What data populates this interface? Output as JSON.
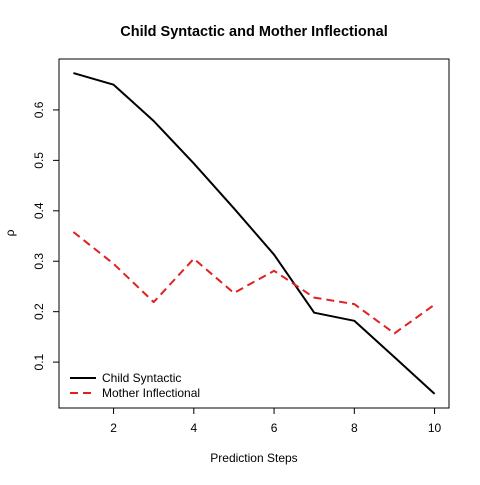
{
  "chart_data": {
    "type": "line",
    "title": "Child Syntactic and Mother Inflectional",
    "xlabel": "Prediction Steps",
    "ylabel": "ρ",
    "x": [
      1,
      2,
      3,
      4,
      5,
      6,
      7,
      8,
      9,
      10
    ],
    "xticks": [
      "2",
      "4",
      "6",
      "8",
      "10"
    ],
    "yticks": [
      "0.1",
      "0.2",
      "0.3",
      "0.4",
      "0.5",
      "0.6"
    ],
    "xlim": [
      0.64,
      10.36
    ],
    "ylim": [
      0.009,
      0.701
    ],
    "grid": false,
    "legend_position": "bottom-left",
    "series": [
      {
        "name": "Child Syntactic",
        "color": "#000000",
        "dash": "solid",
        "values": [
          0.673,
          0.65,
          0.578,
          0.494,
          0.405,
          0.313,
          0.198,
          0.182,
          0.11,
          0.037
        ]
      },
      {
        "name": "Mother Inflectional",
        "color": "#df2121",
        "dash": "dashed",
        "values": [
          0.358,
          0.295,
          0.219,
          0.305,
          0.237,
          0.281,
          0.228,
          0.215,
          0.157,
          0.214
        ]
      }
    ]
  }
}
